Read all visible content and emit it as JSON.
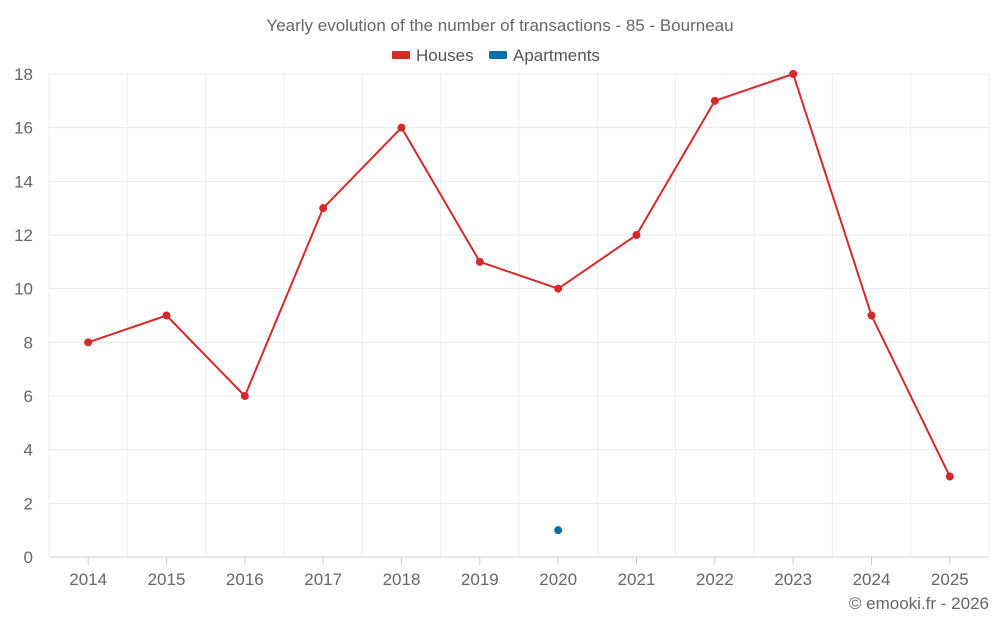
{
  "chart_data": {
    "type": "line",
    "title": "Yearly evolution of the number of transactions - 85 - Bourneau",
    "categories": [
      "2014",
      "2015",
      "2016",
      "2017",
      "2018",
      "2019",
      "2020",
      "2021",
      "2022",
      "2023",
      "2024",
      "2025"
    ],
    "series": [
      {
        "name": "Houses",
        "color": "#d42a2a",
        "values": [
          8,
          9,
          6,
          13,
          16,
          11,
          10,
          12,
          17,
          18,
          9,
          3
        ]
      },
      {
        "name": "Apartments",
        "color": "#0a6ea8",
        "values": [
          null,
          null,
          null,
          null,
          null,
          null,
          1,
          null,
          null,
          null,
          null,
          null
        ]
      }
    ],
    "ylim": [
      0,
      18
    ],
    "yticks": [
      0,
      2,
      4,
      6,
      8,
      10,
      12,
      14,
      16,
      18
    ],
    "grid": true,
    "legend_position": "top-center",
    "xlabel": "",
    "ylabel": ""
  },
  "credit": "© emooki.fr - 2026"
}
